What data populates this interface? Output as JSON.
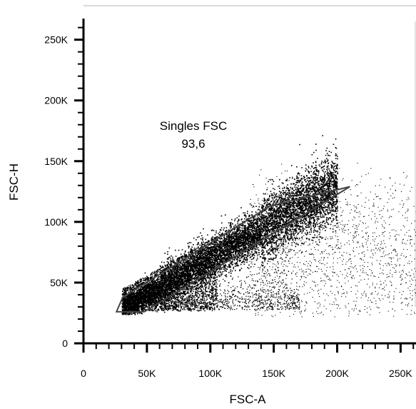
{
  "chart_data": {
    "type": "scatter",
    "title": "",
    "xlabel": "FSC-A",
    "ylabel": "FSC-H",
    "xlim": [
      0,
      262144
    ],
    "ylim": [
      0,
      262144
    ],
    "x_ticks": [
      {
        "value": 0,
        "label": "0"
      },
      {
        "value": 50000,
        "label": "50K"
      },
      {
        "value": 100000,
        "label": "100K"
      },
      {
        "value": 150000,
        "label": "150K"
      },
      {
        "value": 200000,
        "label": "200K"
      },
      {
        "value": 250000,
        "label": "250K"
      }
    ],
    "y_ticks": [
      {
        "value": 0,
        "label": "0"
      },
      {
        "value": 50000,
        "label": "50K"
      },
      {
        "value": 100000,
        "label": "100K"
      },
      {
        "value": 150000,
        "label": "150K"
      },
      {
        "value": 200000,
        "label": "200K"
      },
      {
        "value": 250000,
        "label": "250K"
      }
    ],
    "minor_tick_step": 10000,
    "point_color": "#000000",
    "gate": {
      "name": "Singles FSC",
      "value_label": "93,6",
      "vertices": [
        [
          26000,
          26000
        ],
        [
          48000,
          26000
        ],
        [
          210000,
          129000
        ],
        [
          147000,
          113000
        ],
        [
          31000,
          38000
        ]
      ]
    },
    "population": {
      "description_only": false,
      "dense_core": [
        [
          32000,
          27000
        ],
        [
          60000,
          40000
        ],
        [
          100000,
          62000
        ],
        [
          140000,
          90000
        ],
        [
          175000,
          108000
        ],
        [
          190000,
          115000
        ]
      ],
      "clouds": [
        {
          "x": [
            30000,
            200000
          ],
          "y_at_x": "0.60*x+10000",
          "spread": 9000,
          "count": 9000
        },
        {
          "x": [
            130000,
            262144
          ],
          "y_center": 70000,
          "y_spread": 35000,
          "count": 1600
        },
        {
          "x": [
            60000,
            170000
          ],
          "y_center": 40000,
          "y_spread": 12000,
          "count": 900
        }
      ]
    }
  }
}
